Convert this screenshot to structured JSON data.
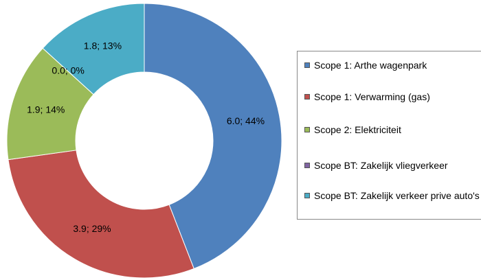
{
  "chart_data": {
    "type": "donut",
    "categories": [
      "Scope 1: Arthe wagenpark",
      "Scope 1: Verwarming (gas)",
      "Scope 2: Elektriciteit",
      "Scope BT: Zakelijk vliegverkeer",
      "Scope BT: Zakelijk verkeer prive auto's"
    ],
    "values": [
      6.0,
      3.9,
      1.9,
      0.0,
      1.8
    ],
    "value_labels": [
      "6.0; 44%",
      "3.9; 29%",
      "1.9; 14%",
      "0.0; 0%",
      "1.8; 13%"
    ],
    "colors": [
      "#4f81bd",
      "#c0504d",
      "#9bbb59",
      "#8064a2",
      "#4bacc6"
    ],
    "legend": "right"
  }
}
